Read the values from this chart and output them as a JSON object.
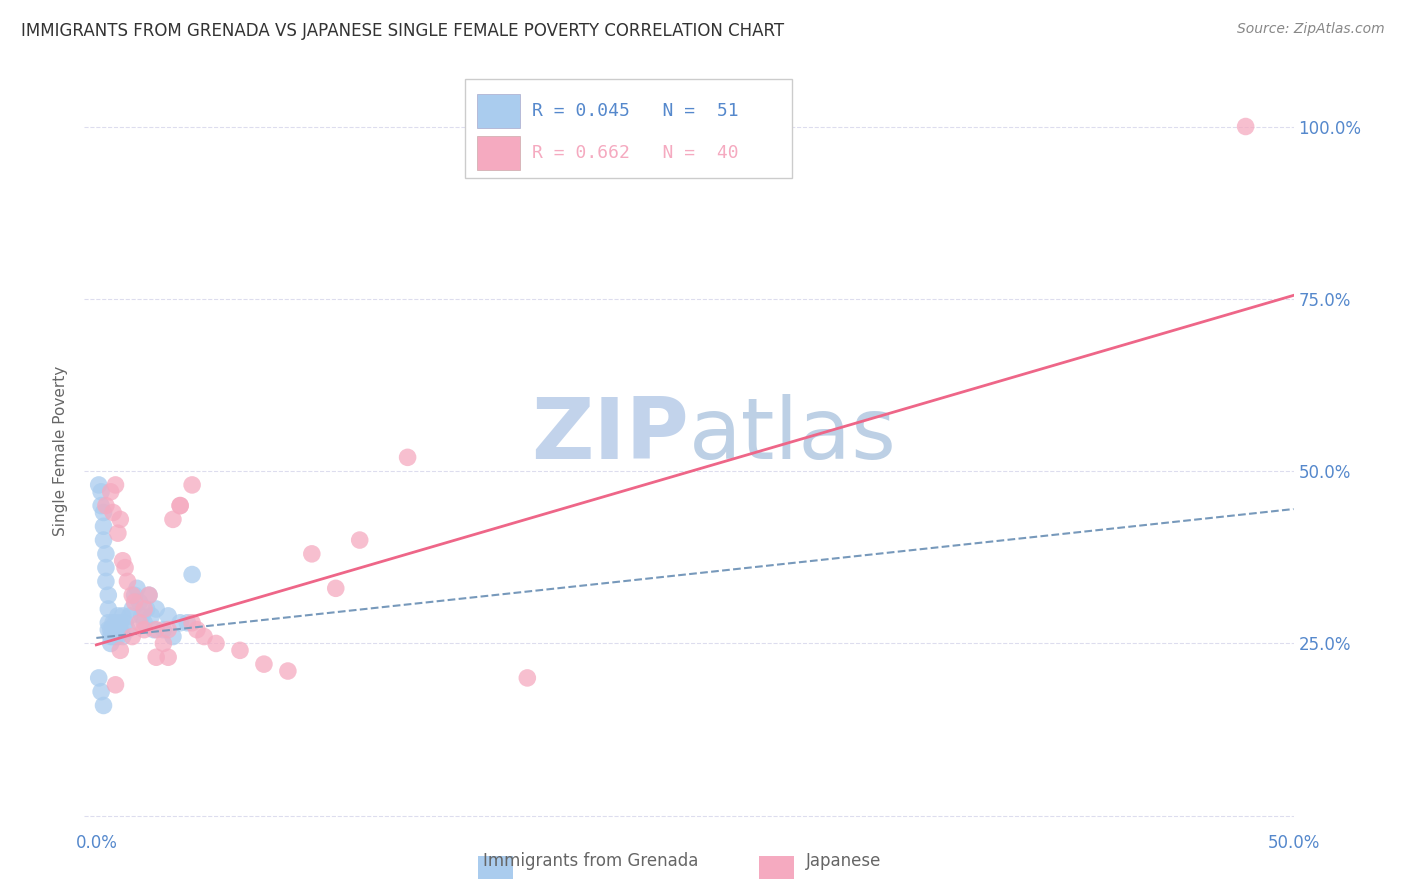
{
  "title": "IMMIGRANTS FROM GRENADA VS JAPANESE SINGLE FEMALE POVERTY CORRELATION CHART",
  "source": "Source: ZipAtlas.com",
  "ylabel_label": "Single Female Poverty",
  "x_ticks": [
    0.0,
    0.5
  ],
  "x_tick_labels": [
    "0.0%",
    "50.0%"
  ],
  "y_ticks": [
    0.0,
    0.25,
    0.5,
    0.75,
    1.0
  ],
  "y_tick_labels": [
    "",
    "25.0%",
    "50.0%",
    "75.0%",
    "100.0%"
  ],
  "xlim": [
    -0.005,
    0.5
  ],
  "ylim": [
    -0.02,
    1.08
  ],
  "legend_r1": "R = 0.045",
  "legend_n1": "N =  51",
  "legend_r2": "R = 0.662",
  "legend_n2": "N =  40",
  "blue_color": "#aaccee",
  "pink_color": "#f5aac0",
  "blue_line_color": "#7799bb",
  "pink_line_color": "#ee6688",
  "tick_label_color": "#5588cc",
  "grid_color": "#ddddee",
  "title_color": "#333333",
  "watermark_color": "#c8d8f0",
  "blue_scatter_x": [
    0.001,
    0.002,
    0.002,
    0.003,
    0.003,
    0.003,
    0.004,
    0.004,
    0.004,
    0.005,
    0.005,
    0.005,
    0.005,
    0.006,
    0.006,
    0.006,
    0.007,
    0.007,
    0.007,
    0.008,
    0.008,
    0.008,
    0.009,
    0.009,
    0.01,
    0.01,
    0.011,
    0.011,
    0.012,
    0.013,
    0.014,
    0.015,
    0.016,
    0.017,
    0.018,
    0.019,
    0.02,
    0.021,
    0.022,
    0.023,
    0.024,
    0.025,
    0.028,
    0.03,
    0.032,
    0.035,
    0.038,
    0.04,
    0.001,
    0.002,
    0.003
  ],
  "blue_scatter_y": [
    0.48,
    0.47,
    0.45,
    0.44,
    0.42,
    0.4,
    0.38,
    0.36,
    0.34,
    0.32,
    0.3,
    0.28,
    0.27,
    0.27,
    0.26,
    0.25,
    0.26,
    0.27,
    0.28,
    0.26,
    0.27,
    0.28,
    0.29,
    0.26,
    0.27,
    0.28,
    0.29,
    0.26,
    0.28,
    0.27,
    0.29,
    0.3,
    0.32,
    0.33,
    0.31,
    0.29,
    0.28,
    0.3,
    0.32,
    0.29,
    0.27,
    0.3,
    0.27,
    0.29,
    0.26,
    0.28,
    0.28,
    0.35,
    0.2,
    0.18,
    0.16
  ],
  "pink_scatter_x": [
    0.004,
    0.006,
    0.007,
    0.008,
    0.009,
    0.01,
    0.011,
    0.012,
    0.013,
    0.015,
    0.016,
    0.018,
    0.02,
    0.022,
    0.025,
    0.028,
    0.03,
    0.032,
    0.035,
    0.04,
    0.042,
    0.045,
    0.05,
    0.06,
    0.07,
    0.08,
    0.09,
    0.1,
    0.11,
    0.13,
    0.008,
    0.01,
    0.015,
    0.02,
    0.025,
    0.03,
    0.035,
    0.04,
    0.18,
    0.48
  ],
  "pink_scatter_y": [
    0.45,
    0.47,
    0.44,
    0.48,
    0.41,
    0.43,
    0.37,
    0.36,
    0.34,
    0.32,
    0.31,
    0.28,
    0.27,
    0.32,
    0.27,
    0.25,
    0.23,
    0.43,
    0.45,
    0.28,
    0.27,
    0.26,
    0.25,
    0.24,
    0.22,
    0.21,
    0.38,
    0.33,
    0.4,
    0.52,
    0.19,
    0.24,
    0.26,
    0.3,
    0.23,
    0.27,
    0.45,
    0.48,
    0.2,
    1.0
  ],
  "blue_trend": [
    0.0,
    0.5,
    0.258,
    0.445
  ],
  "pink_trend": [
    0.0,
    0.5,
    0.248,
    0.755
  ]
}
